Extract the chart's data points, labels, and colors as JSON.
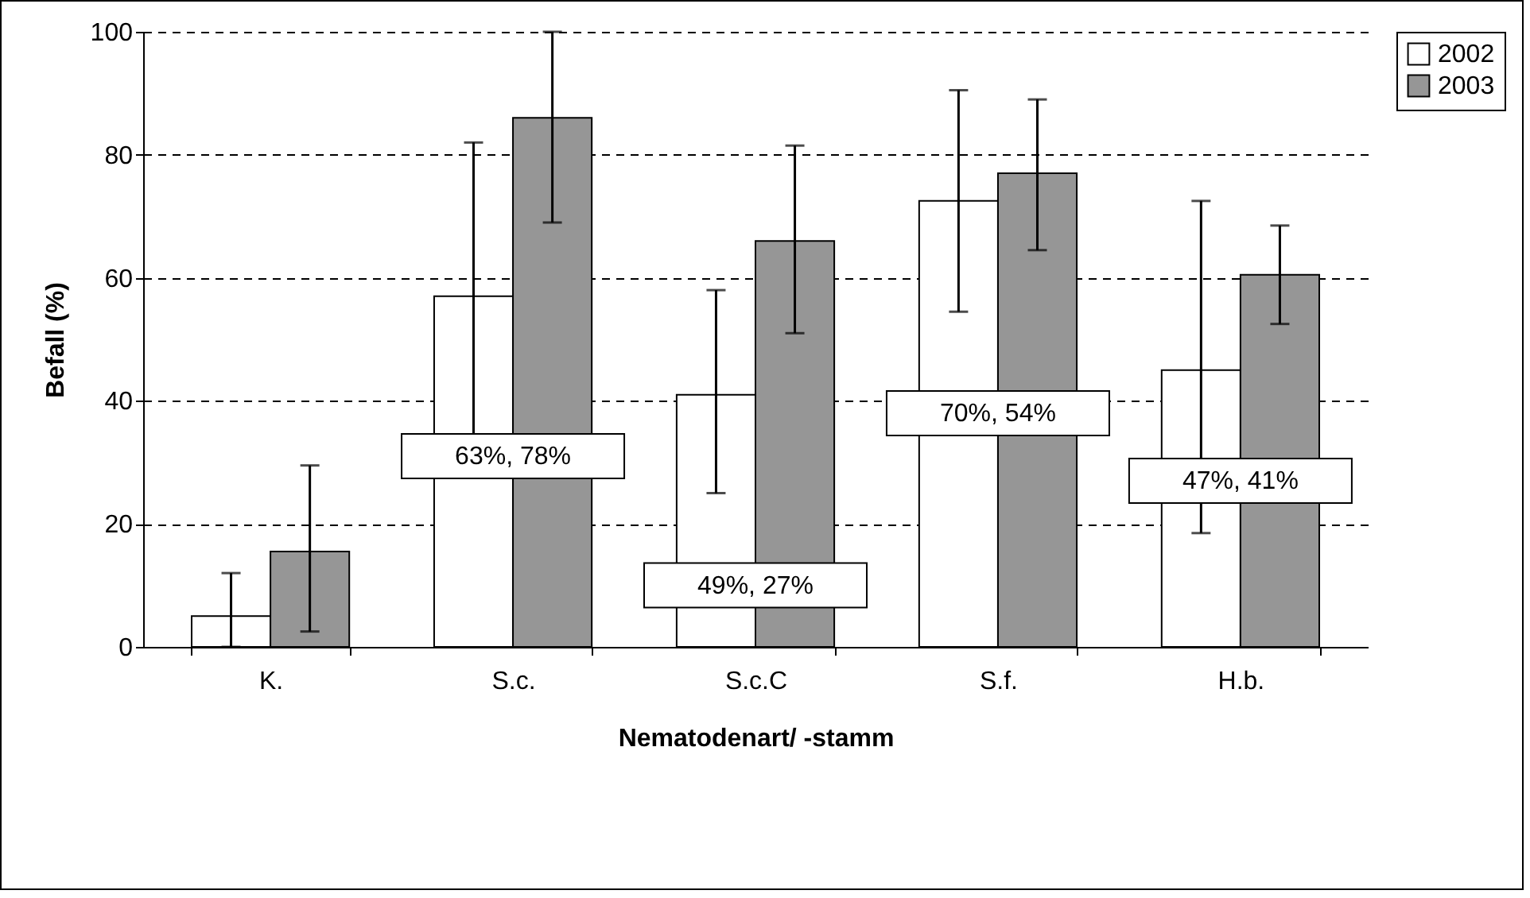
{
  "chart_data": {
    "type": "bar",
    "xlabel": "Nematodenart/ -stamm",
    "ylabel": "Befall (%)",
    "categories": [
      "K.",
      "S.c.",
      "S.c.C",
      "S.f.",
      "H.b."
    ],
    "series": [
      {
        "name": "2002",
        "color": "#ffffff",
        "values": [
          5,
          57,
          41,
          72.5,
          45
        ],
        "errors": [
          [
            0,
            12
          ],
          [
            31,
            82
          ],
          [
            25,
            58
          ],
          [
            54.5,
            90.5
          ],
          [
            18.5,
            72.5
          ]
        ]
      },
      {
        "name": "2003",
        "color": "#969696",
        "values": [
          15.5,
          86,
          66,
          77,
          60.5
        ],
        "errors": [
          [
            2.5,
            29.5
          ],
          [
            69,
            100
          ],
          [
            51,
            81.5
          ],
          [
            64.5,
            89
          ],
          [
            52.5,
            68.5
          ]
        ]
      }
    ],
    "ylim": [
      0,
      100
    ],
    "yticks": [
      0,
      20,
      40,
      60,
      80,
      100
    ],
    "grid": "y",
    "legend": "right",
    "annotations": [
      {
        "text": "63%, 78%",
        "x": "S.c.",
        "y": 31
      },
      {
        "text": "49%, 27%",
        "x": "S.c.C",
        "y": 10
      },
      {
        "text": "70%, 54%",
        "x": "S.f.",
        "y": 38
      },
      {
        "text": "47%, 41%",
        "x": "H.b.",
        "y": 27
      }
    ]
  }
}
